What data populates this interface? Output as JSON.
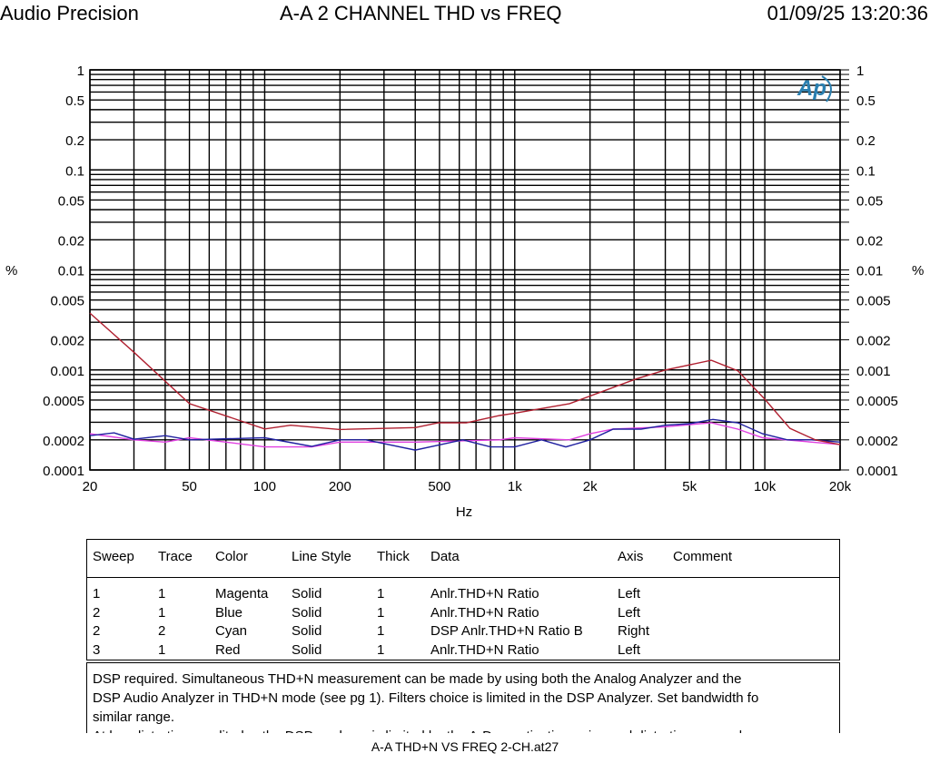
{
  "header": {
    "brand": "Audio Precision",
    "title": "A-A 2 CHANNEL  THD vs FREQ",
    "datetime": "01/09/25 13:20:36"
  },
  "logo_text": "Ap",
  "chart_data": {
    "type": "line",
    "title": "A-A 2 CHANNEL  THD vs FREQ",
    "xlabel": "Hz",
    "ylabel": "%",
    "ylabel_right": "%",
    "x_scale": "log",
    "y_scale": "log",
    "xlim": [
      20,
      20000
    ],
    "ylim": [
      0.0001,
      1
    ],
    "grid": true,
    "x_ticks": [
      {
        "v": 20,
        "label": "20"
      },
      {
        "v": 50,
        "label": "50"
      },
      {
        "v": 100,
        "label": "100"
      },
      {
        "v": 200,
        "label": "200"
      },
      {
        "v": 500,
        "label": "500"
      },
      {
        "v": 1000,
        "label": "1k"
      },
      {
        "v": 2000,
        "label": "2k"
      },
      {
        "v": 5000,
        "label": "5k"
      },
      {
        "v": 10000,
        "label": "10k"
      },
      {
        "v": 20000,
        "label": "20k"
      }
    ],
    "y_ticks": [
      {
        "v": 1,
        "label": "1"
      },
      {
        "v": 0.5,
        "label": "0.5"
      },
      {
        "v": 0.2,
        "label": "0.2"
      },
      {
        "v": 0.1,
        "label": "0.1"
      },
      {
        "v": 0.05,
        "label": "0.05"
      },
      {
        "v": 0.02,
        "label": "0.02"
      },
      {
        "v": 0.01,
        "label": "0.01"
      },
      {
        "v": 0.005,
        "label": "0.005"
      },
      {
        "v": 0.002,
        "label": "0.002"
      },
      {
        "v": 0.001,
        "label": "0.001"
      },
      {
        "v": 0.0005,
        "label": "0.0005"
      },
      {
        "v": 0.0002,
        "label": "0.0002"
      },
      {
        "v": 0.0001,
        "label": "0.0001"
      }
    ],
    "series": [
      {
        "color": "#e040e0",
        "x": [
          20,
          30,
          40,
          50,
          70,
          100,
          154,
          200,
          400,
          870,
          1000,
          1650,
          2000,
          2470,
          4000,
          6100,
          7800,
          9800,
          15400,
          20000
        ],
        "y": [
          0.00023,
          0.0002,
          0.00019,
          0.00021,
          0.00019,
          0.00017,
          0.00017,
          0.00019,
          0.00019,
          0.0002,
          0.00021,
          0.0002,
          0.00023,
          0.000256,
          0.00027,
          0.000296,
          0.000256,
          0.00021,
          0.00019,
          0.00018
        ]
      },
      {
        "color": "#2020a0",
        "x": [
          20,
          25,
          30,
          40,
          50,
          100,
          154,
          200,
          254,
          400,
          620,
          800,
          1000,
          1280,
          1600,
          2000,
          2474,
          3200,
          4000,
          5000,
          6200,
          7800,
          9800,
          12300,
          15400,
          20000
        ],
        "y": [
          0.00022,
          0.000235,
          0.000203,
          0.00022,
          0.0002,
          0.00021,
          0.000172,
          0.0002,
          0.0002,
          0.000158,
          0.0002,
          0.00017,
          0.00017,
          0.0002,
          0.00017,
          0.0002,
          0.000256,
          0.000256,
          0.00028,
          0.00029,
          0.00032,
          0.000296,
          0.00023,
          0.0002,
          0.0002,
          0.00019
        ]
      },
      {
        "color": "#b02030",
        "x": [
          20,
          30,
          50,
          100,
          127,
          200,
          400,
          496,
          640,
          870,
          1000,
          1656,
          3048,
          4000,
          6110,
          7800,
          10000,
          12600,
          15900,
          20000
        ],
        "y": [
          0.0037,
          0.0015,
          0.00046,
          0.000257,
          0.00028,
          0.000254,
          0.000265,
          0.000296,
          0.000296,
          0.00035,
          0.00037,
          0.00046,
          0.00081,
          0.001,
          0.00125,
          0.00098,
          0.00051,
          0.00026,
          0.0002,
          0.000179
        ]
      }
    ]
  },
  "legend_table": {
    "headers": [
      "Sweep",
      "Trace",
      "Color",
      "Line Style",
      "Thick",
      "Data",
      "Axis",
      "Comment"
    ],
    "rows": [
      [
        "1",
        "1",
        "Magenta",
        "Solid",
        "1",
        "Anlr.THD+N Ratio",
        "Left",
        ""
      ],
      [
        "2",
        "1",
        "Blue",
        "Solid",
        "1",
        "Anlr.THD+N Ratio",
        "Left",
        ""
      ],
      [
        "2",
        "2",
        "Cyan",
        "Solid",
        "1",
        "DSP Anlr.THD+N Ratio B",
        "Right",
        ""
      ],
      [
        "3",
        "1",
        "Red",
        "Solid",
        "1",
        "Anlr.THD+N Ratio",
        "Left",
        ""
      ]
    ]
  },
  "notes": [
    "DSP required.  Simultaneous THD+N measurement can be made by using both the Analog Analyzer and the",
    "DSP Audio Analyzer in THD+N mode (see pg 1).  Filters choice is limited in the DSP Analyzer.  Set bandwidth fo",
    "similar range.",
    "At low distortion amplitudes the DSP analyzer is limited by the A-D quantization noise and distortion as can be"
  ],
  "footer": "A-A THD+N VS FREQ 2-CH.at27"
}
